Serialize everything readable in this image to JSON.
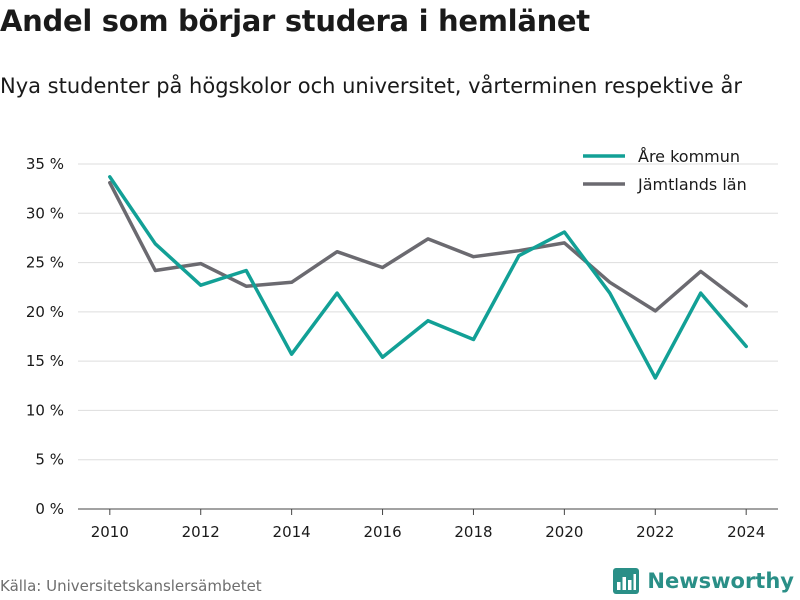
{
  "title": "Andel som börjar studera i hemlänet",
  "subtitle": "Nya studenter på högskolor och universitet, vårterminen respektive år",
  "source": "Källa: Universitetskanslersämbetet",
  "brand": "Newsworthy",
  "chart_data": {
    "type": "line",
    "x": [
      2010,
      2011,
      2012,
      2013,
      2014,
      2015,
      2016,
      2017,
      2018,
      2019,
      2020,
      2021,
      2022,
      2023,
      2024
    ],
    "xticks": [
      2010,
      2012,
      2014,
      2016,
      2018,
      2020,
      2022,
      2024
    ],
    "xtick_labels": [
      "2010",
      "2012",
      "2014",
      "2016",
      "2018",
      "2020",
      "2022",
      "2024"
    ],
    "yticks": [
      0,
      5,
      10,
      15,
      20,
      25,
      30,
      35
    ],
    "ytick_labels": [
      "0 %",
      "5 %",
      "10 %",
      "15 %",
      "20 %",
      "25 %",
      "30 %",
      "35 %"
    ],
    "ylim": [
      0,
      35
    ],
    "xlim": [
      2009.3,
      2024.7
    ],
    "grid": true,
    "legend_position": "top-right",
    "series": [
      {
        "name": "Åre kommun",
        "color": "#12a096",
        "values": [
          33.7,
          26.9,
          22.7,
          24.2,
          15.7,
          21.9,
          15.4,
          19.1,
          17.2,
          25.7,
          28.1,
          21.9,
          13.3,
          21.9,
          16.5
        ]
      },
      {
        "name": "Jämtlands län",
        "color": "#6b6a70",
        "values": [
          33.1,
          24.2,
          24.9,
          22.6,
          23.0,
          26.1,
          24.5,
          27.4,
          25.6,
          26.2,
          27.0,
          23.0,
          20.1,
          24.1,
          20.6
        ]
      }
    ]
  }
}
